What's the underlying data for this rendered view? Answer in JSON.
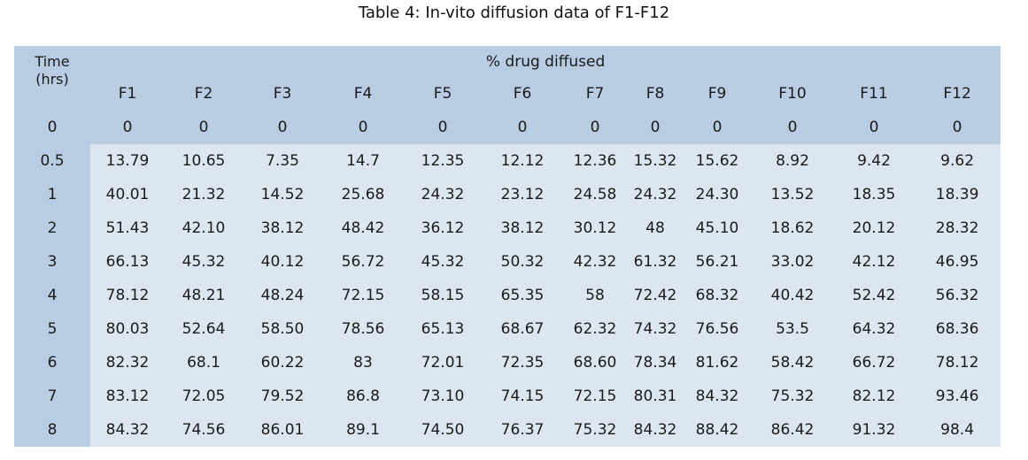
{
  "caption": "Table 4: In-vito diffusion data of F1-F12",
  "table": {
    "time_header_line1": "Time",
    "time_header_line2": "(hrs)",
    "group_header": "% drug diffused",
    "columns": [
      "F1",
      "F2",
      "F3",
      "F4",
      "F5",
      "F6",
      "F7",
      "F8",
      "F9",
      "F10",
      "F11",
      "F12"
    ],
    "rows": [
      {
        "time": "0",
        "values": [
          "0",
          "0",
          "0",
          "0",
          "0",
          "0",
          "0",
          "0",
          "0",
          "0",
          "0",
          "0"
        ]
      },
      {
        "time": "0.5",
        "values": [
          "13.79",
          "10.65",
          "7.35",
          "14.7",
          "12.35",
          "12.12",
          "12.36",
          "15.32",
          "15.62",
          "8.92",
          "9.42",
          "9.62"
        ]
      },
      {
        "time": "1",
        "values": [
          "40.01",
          "21.32",
          "14.52",
          "25.68",
          "24.32",
          "23.12",
          "24.58",
          "24.32",
          "24.30",
          "13.52",
          "18.35",
          "18.39"
        ]
      },
      {
        "time": "2",
        "values": [
          "51.43",
          "42.10",
          "38.12",
          "48.42",
          "36.12",
          "38.12",
          "30.12",
          "48",
          "45.10",
          "18.62",
          "20.12",
          "28.32"
        ]
      },
      {
        "time": "3",
        "values": [
          "66.13",
          "45.32",
          "40.12",
          "56.72",
          "45.32",
          "50.32",
          "42.32",
          "61.32",
          "56.21",
          "33.02",
          "42.12",
          "46.95"
        ]
      },
      {
        "time": "4",
        "values": [
          "78.12",
          "48.21",
          "48.24",
          "72.15",
          "58.15",
          "65.35",
          "58",
          "72.42",
          "68.32",
          "40.42",
          "52.42",
          "56.32"
        ]
      },
      {
        "time": "5",
        "values": [
          "80.03",
          "52.64",
          "58.50",
          "78.56",
          "65.13",
          "68.67",
          "62.32",
          "74.32",
          "76.56",
          "53.5",
          "64.32",
          "68.36"
        ]
      },
      {
        "time": "6",
        "values": [
          "82.32",
          "68.1",
          "60.22",
          "83",
          "72.01",
          "72.35",
          "68.60",
          "78.34",
          "81.62",
          "58.42",
          "66.72",
          "78.12"
        ]
      },
      {
        "time": "7",
        "values": [
          "83.12",
          "72.05",
          "79.52",
          "86.8",
          "73.10",
          "74.15",
          "72.15",
          "80.31",
          "84.32",
          "75.32",
          "82.12",
          "93.46"
        ]
      },
      {
        "time": "8",
        "values": [
          "84.32",
          "74.56",
          "86.01",
          "89.1",
          "74.50",
          "76.37",
          "75.32",
          "84.32",
          "88.42",
          "86.42",
          "91.32",
          "98.4"
        ]
      }
    ]
  }
}
